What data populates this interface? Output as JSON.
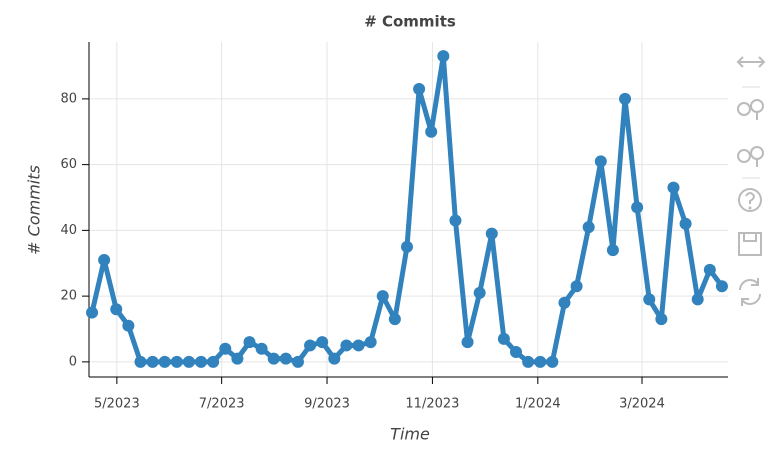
{
  "chart_data": {
    "type": "line",
    "title": "# Commits",
    "x_label": "Time",
    "y_label": "# Commits",
    "series": [
      {
        "name": "# Commits",
        "color": "#3182bd",
        "values": [
          15,
          31,
          16,
          11,
          0,
          0,
          0,
          0,
          0,
          0,
          0,
          4,
          1,
          6,
          4,
          1,
          1,
          0,
          5,
          6,
          1,
          5,
          5,
          6,
          20,
          13,
          35,
          83,
          70,
          93,
          43,
          6,
          21,
          39,
          7,
          3,
          0,
          0,
          0,
          18,
          23,
          41,
          61,
          34,
          80,
          47,
          19,
          13,
          53,
          42,
          19,
          28,
          23
        ]
      }
    ],
    "xlim": [
      -0.25,
      52.5
    ],
    "xticks": [
      {
        "value": 2.05,
        "label": "5/2023"
      },
      {
        "value": 10.7,
        "label": "7/2023"
      },
      {
        "value": 19.4,
        "label": "9/2023"
      },
      {
        "value": 28.1,
        "label": "11/2023"
      },
      {
        "value": 36.8,
        "label": "1/2024"
      },
      {
        "value": 45.4,
        "label": "3/2024"
      }
    ],
    "ylim": [
      -4.6,
      97.3
    ],
    "yticks": [
      0,
      20,
      40,
      60,
      80
    ],
    "grid": true
  }
}
